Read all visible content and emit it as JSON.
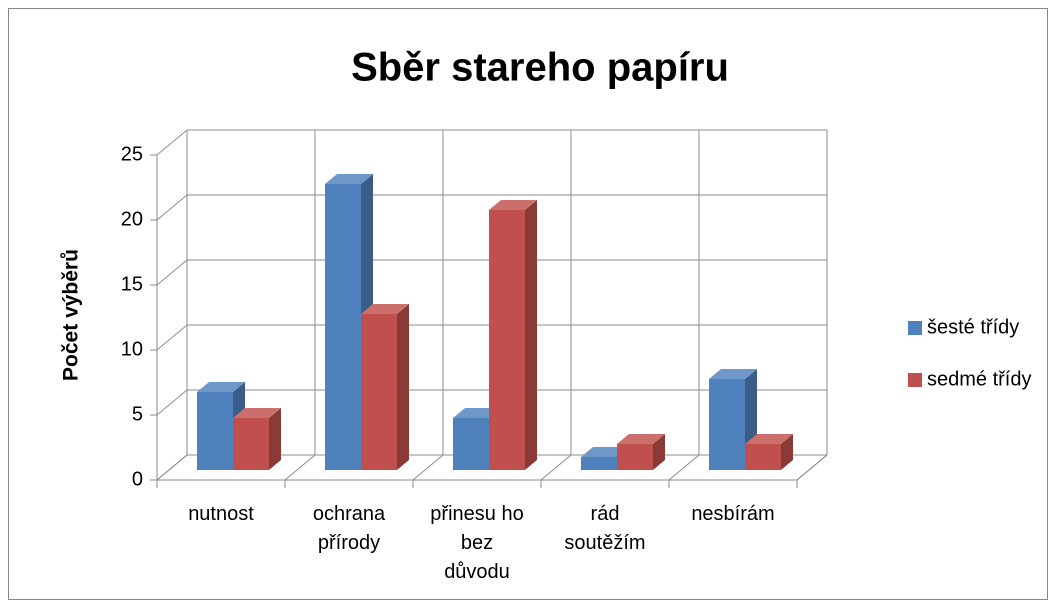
{
  "chart_data": {
    "type": "bar3d",
    "title": "Sběr stareho papíru",
    "y_label": "Počet výběrů",
    "categories": [
      "nutnost",
      "ochrana přírody",
      "přinesu ho bez důvodu",
      "rád soutěžím",
      "nesbírám"
    ],
    "series": [
      {
        "name": "šesté třídy",
        "color": "#4f81bd",
        "values": [
          6,
          22,
          4,
          1,
          7
        ]
      },
      {
        "name": "sedmé třídy",
        "color": "#c0504d",
        "values": [
          4,
          12,
          20,
          2,
          2
        ]
      }
    ],
    "ylim": [
      0,
      25
    ],
    "yticks": [
      0,
      5,
      10,
      15,
      20,
      25
    ],
    "grid": true,
    "legend": "right"
  }
}
